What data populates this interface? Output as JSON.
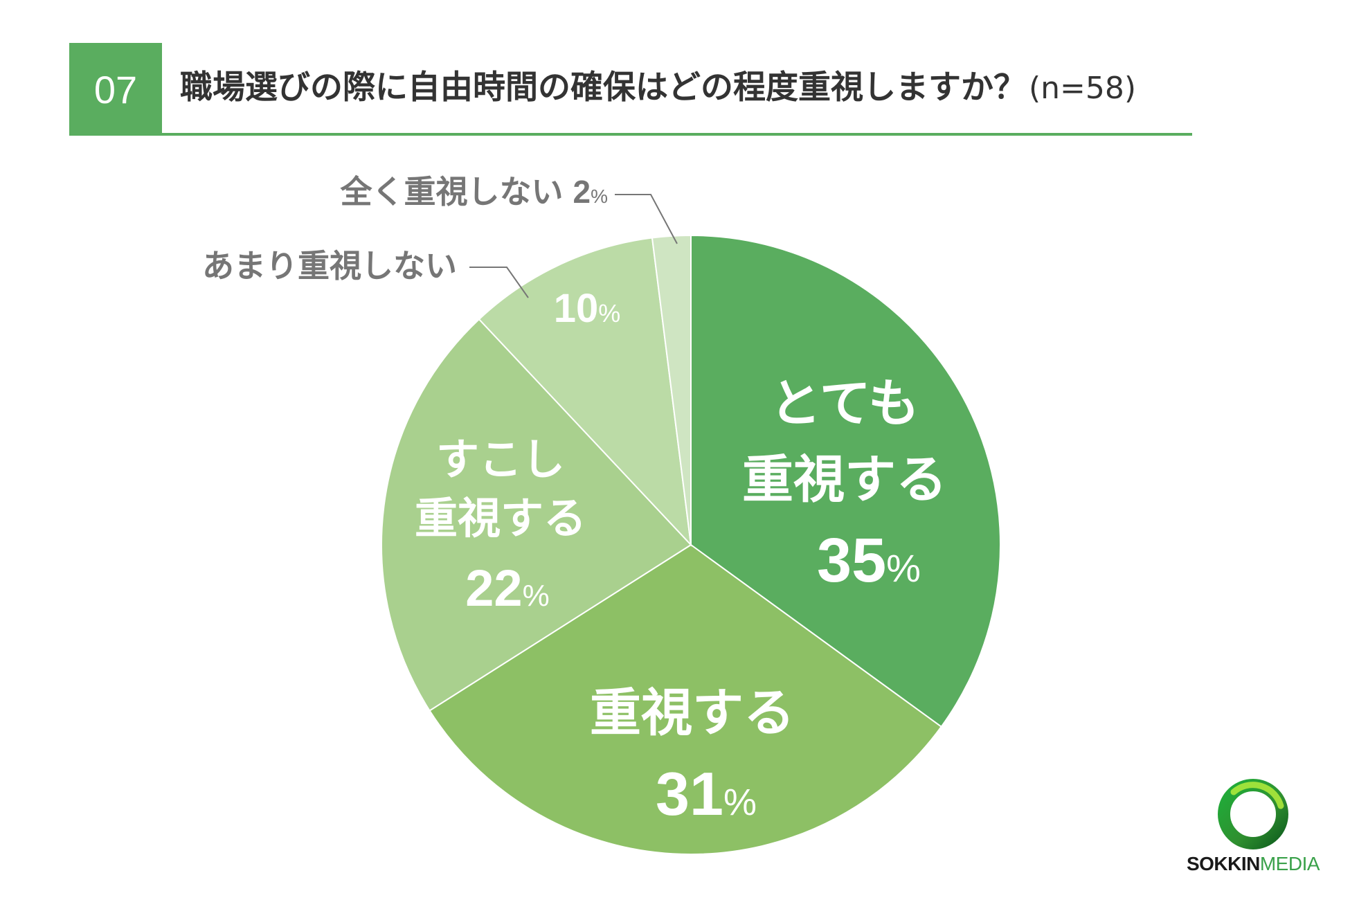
{
  "header": {
    "number": "07",
    "title": "職場選びの際に自由時間の確保はどの程度重視しますか？",
    "sample": "(n=58)"
  },
  "chart_data": {
    "type": "pie",
    "start": "12 o'clock, clockwise",
    "slices": [
      {
        "label_lines": [
          "とても",
          "重視する"
        ],
        "value": 35,
        "value_text": "35",
        "color": "#5aad5f"
      },
      {
        "label_lines": [
          "重視する"
        ],
        "value": 31,
        "value_text": "31",
        "color": "#8dc065"
      },
      {
        "label_lines": [
          "すこし",
          "重視する"
        ],
        "value": 22,
        "value_text": "22",
        "color": "#a9d08e"
      },
      {
        "label_lines": [
          "あまり重視しない"
        ],
        "value": 10,
        "value_text": "10",
        "color": "#bbdba6"
      },
      {
        "label_lines": [
          "全く重視しない"
        ],
        "value": 2,
        "value_text": "2",
        "color": "#cfe5c2"
      }
    ],
    "percent_sign": "%"
  },
  "colors": {
    "accent": "#5aad5f",
    "title_text": "#333333",
    "outside_label": "#767676",
    "inside_label": "#ffffff",
    "leader_line": "#767676"
  },
  "logo": {
    "text_a": "SOKKIN",
    "text_b": "MEDIA"
  }
}
